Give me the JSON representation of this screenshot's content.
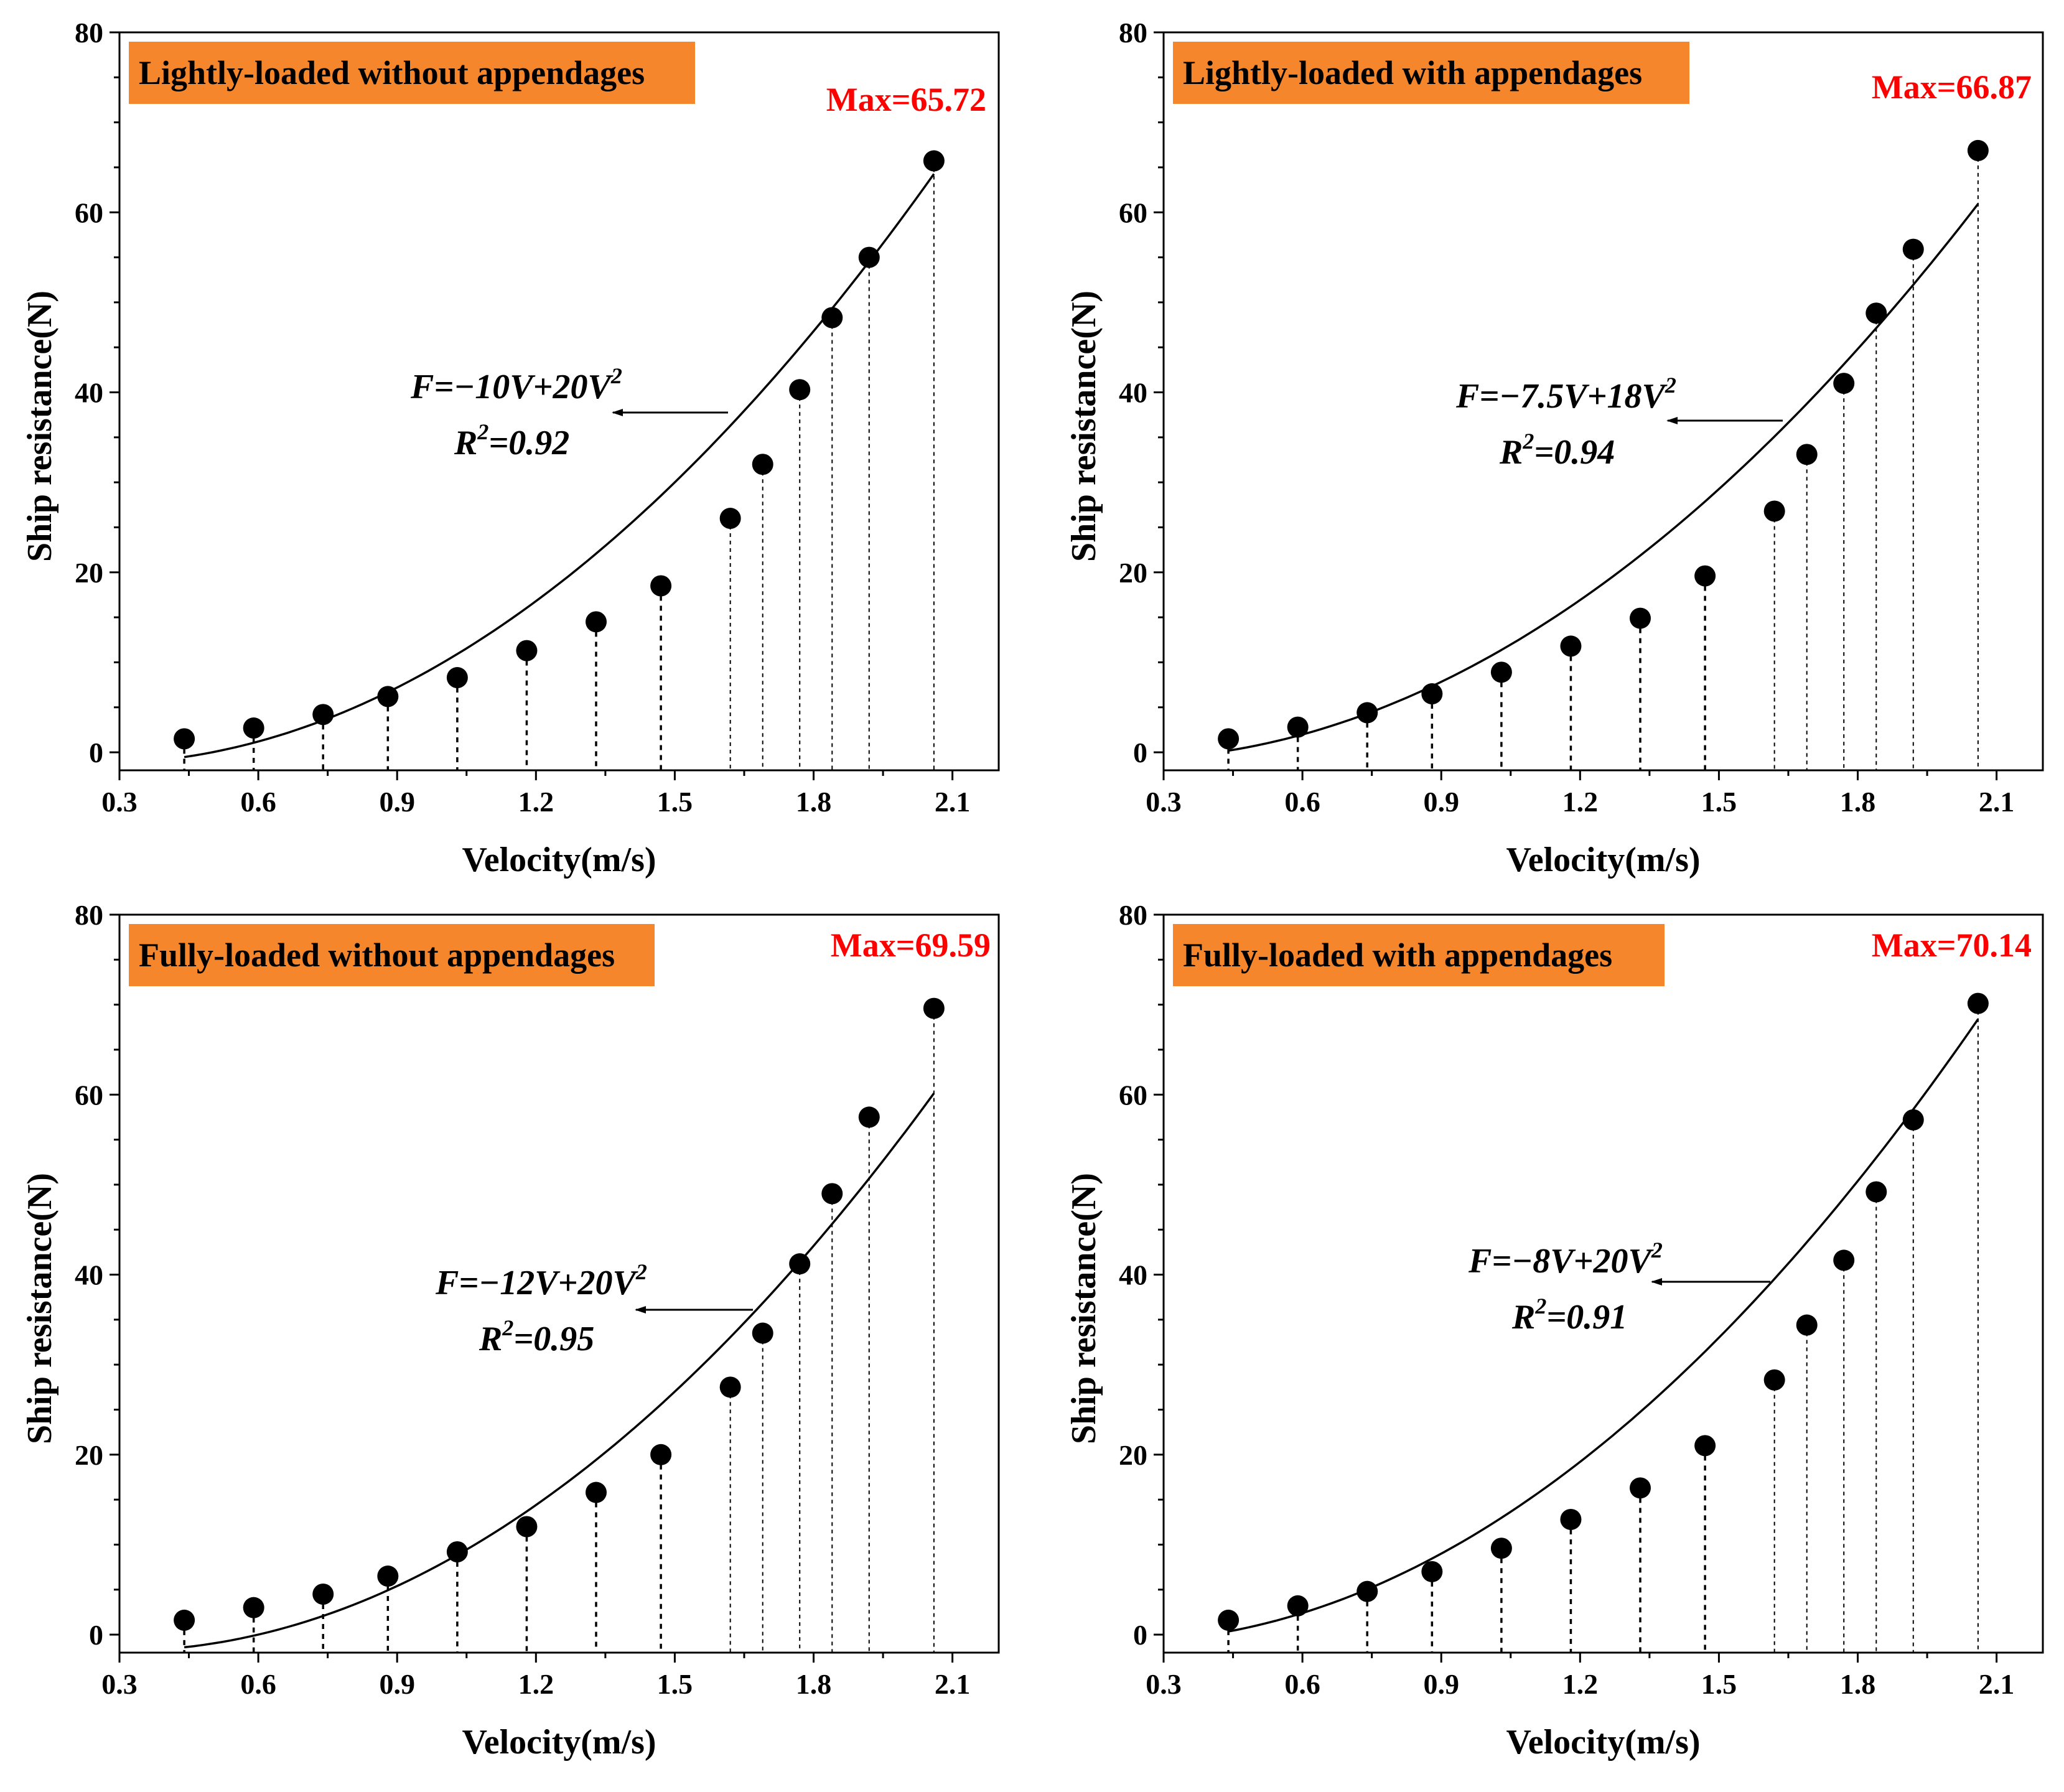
{
  "figure_type": "2x2 scatter with quadratic fit",
  "colors": {
    "title_box": "#f5862c",
    "max_label": "#ff0000",
    "points": "#000000"
  },
  "chart_data": [
    {
      "type": "scatter",
      "title": "Lightly-loaded without appendages",
      "xlabel": "Velocity(m/s)",
      "ylabel": "Ship resistance(N)",
      "xlim": [
        0.3,
        2.2
      ],
      "ylim": [
        -2,
        80
      ],
      "xticks": [
        "0.3",
        "0.6",
        "0.9",
        "1.2",
        "1.5",
        "1.8",
        "2.1"
      ],
      "yticks": [
        "0",
        "20",
        "40",
        "60",
        "80"
      ],
      "max_label": "Max=65.72",
      "equation": {
        "lhs": "F=−10V+20V",
        "exp": "2",
        "r_prefix": "R",
        "r_exp": "2",
        "r_value": "=0.92"
      },
      "fit": {
        "a": 0,
        "b": -10,
        "c": 20,
        "x_range": [
          0.44,
          2.06
        ]
      },
      "points": [
        {
          "x": 0.44,
          "y": 1.5
        },
        {
          "x": 0.59,
          "y": 2.7
        },
        {
          "x": 0.74,
          "y": 4.2
        },
        {
          "x": 0.88,
          "y": 6.2
        },
        {
          "x": 1.03,
          "y": 8.3
        },
        {
          "x": 1.18,
          "y": 11.3
        },
        {
          "x": 1.33,
          "y": 14.5
        },
        {
          "x": 1.47,
          "y": 18.5
        },
        {
          "x": 1.62,
          "y": 26.0
        },
        {
          "x": 1.69,
          "y": 32.0
        },
        {
          "x": 1.77,
          "y": 40.3
        },
        {
          "x": 1.84,
          "y": 48.3
        },
        {
          "x": 1.92,
          "y": 55.0
        },
        {
          "x": 2.06,
          "y": 65.72
        }
      ]
    },
    {
      "type": "scatter",
      "title": "Lightly-loaded with appendages",
      "xlabel": "Velocity(m/s)",
      "ylabel": "Ship resistance(N)",
      "xlim": [
        0.3,
        2.2
      ],
      "ylim": [
        -2,
        80
      ],
      "xticks": [
        "0.3",
        "0.6",
        "0.9",
        "1.2",
        "1.5",
        "1.8",
        "2.1"
      ],
      "yticks": [
        "0",
        "20",
        "40",
        "60",
        "80"
      ],
      "max_label": "Max=66.87",
      "equation": {
        "lhs": "F=−7.5V+18V",
        "exp": "2",
        "r_prefix": "R",
        "r_exp": "2",
        "r_value": "=0.94"
      },
      "fit": {
        "a": 0,
        "b": -7.5,
        "c": 18,
        "x_range": [
          0.44,
          2.06
        ]
      },
      "points": [
        {
          "x": 0.44,
          "y": 1.5
        },
        {
          "x": 0.59,
          "y": 2.8
        },
        {
          "x": 0.74,
          "y": 4.4
        },
        {
          "x": 0.88,
          "y": 6.5
        },
        {
          "x": 1.03,
          "y": 8.9
        },
        {
          "x": 1.18,
          "y": 11.8
        },
        {
          "x": 1.33,
          "y": 14.9
        },
        {
          "x": 1.47,
          "y": 19.6
        },
        {
          "x": 1.62,
          "y": 26.8
        },
        {
          "x": 1.69,
          "y": 33.1
        },
        {
          "x": 1.77,
          "y": 41.0
        },
        {
          "x": 1.84,
          "y": 48.8
        },
        {
          "x": 1.92,
          "y": 55.9
        },
        {
          "x": 2.06,
          "y": 66.87
        }
      ]
    },
    {
      "type": "scatter",
      "title": "Fully-loaded without appendages",
      "xlabel": "Velocity(m/s)",
      "ylabel": "Ship resistance(N)",
      "xlim": [
        0.3,
        2.2
      ],
      "ylim": [
        -2,
        80
      ],
      "xticks": [
        "0.3",
        "0.6",
        "0.9",
        "1.2",
        "1.5",
        "1.8",
        "2.1"
      ],
      "yticks": [
        "0",
        "20",
        "40",
        "60",
        "80"
      ],
      "max_label": "Max=69.59",
      "equation": {
        "lhs": "F=−12V+20V",
        "exp": "2",
        "r_prefix": "R",
        "r_exp": "2",
        "r_value": "=0.95"
      },
      "fit": {
        "a": 0,
        "b": -12,
        "c": 20,
        "x_range": [
          0.44,
          2.06
        ]
      },
      "points": [
        {
          "x": 0.44,
          "y": 1.6
        },
        {
          "x": 0.59,
          "y": 3.0
        },
        {
          "x": 0.74,
          "y": 4.5
        },
        {
          "x": 0.88,
          "y": 6.5
        },
        {
          "x": 1.03,
          "y": 9.2
        },
        {
          "x": 1.18,
          "y": 12.0
        },
        {
          "x": 1.33,
          "y": 15.8
        },
        {
          "x": 1.47,
          "y": 20.0
        },
        {
          "x": 1.62,
          "y": 27.5
        },
        {
          "x": 1.69,
          "y": 33.5
        },
        {
          "x": 1.77,
          "y": 41.2
        },
        {
          "x": 1.84,
          "y": 49.0
        },
        {
          "x": 1.92,
          "y": 57.5
        },
        {
          "x": 2.06,
          "y": 69.59
        }
      ]
    },
    {
      "type": "scatter",
      "title": "Fully-loaded with appendages",
      "xlabel": "Velocity(m/s)",
      "ylabel": "Ship resistance(N)",
      "xlim": [
        0.3,
        2.2
      ],
      "ylim": [
        -2,
        80
      ],
      "xticks": [
        "0.3",
        "0.6",
        "0.9",
        "1.2",
        "1.5",
        "1.8",
        "2.1"
      ],
      "yticks": [
        "0",
        "20",
        "40",
        "60",
        "80"
      ],
      "max_label": "Max=70.14",
      "equation": {
        "lhs": "F=−8V+20V",
        "exp": "2",
        "r_prefix": "R",
        "r_exp": "2",
        "r_value": "=0.91"
      },
      "fit": {
        "a": 0,
        "b": -8,
        "c": 20,
        "x_range": [
          0.44,
          2.06
        ]
      },
      "points": [
        {
          "x": 0.44,
          "y": 1.6
        },
        {
          "x": 0.59,
          "y": 3.2
        },
        {
          "x": 0.74,
          "y": 4.8
        },
        {
          "x": 0.88,
          "y": 7.0
        },
        {
          "x": 1.03,
          "y": 9.6
        },
        {
          "x": 1.18,
          "y": 12.8
        },
        {
          "x": 1.33,
          "y": 16.3
        },
        {
          "x": 1.47,
          "y": 21.0
        },
        {
          "x": 1.62,
          "y": 28.3
        },
        {
          "x": 1.69,
          "y": 34.4
        },
        {
          "x": 1.77,
          "y": 41.6
        },
        {
          "x": 1.84,
          "y": 49.2
        },
        {
          "x": 1.92,
          "y": 57.2
        },
        {
          "x": 2.06,
          "y": 70.14
        }
      ]
    }
  ]
}
